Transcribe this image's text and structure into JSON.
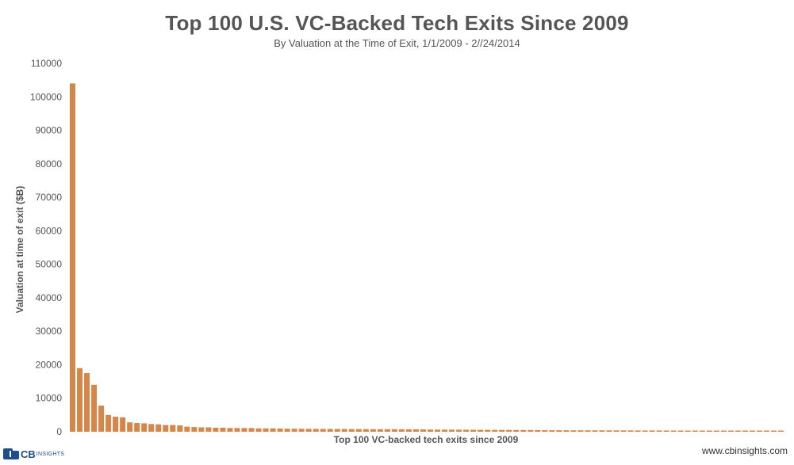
{
  "header": {
    "title": "Top 100 U.S. VC-Backed Tech Exits Since 2009",
    "subtitle": "By Valuation at the Time of Exit, 1/1/2009 - 2//24/2014"
  },
  "footer": {
    "logo_cb": "CB",
    "logo_insights": "INSIGHTS",
    "website": "www.cbinsights.com"
  },
  "colors": {
    "bar": "#d4874a",
    "text": "#555555"
  },
  "chart_data": {
    "type": "bar",
    "title": "Top 100 U.S. VC-Backed Tech Exits Since 2009",
    "subtitle": "By Valuation at the Time of Exit, 1/1/2009 - 2//24/2014",
    "xlabel": "Top 100 VC-backed tech exits since 2009",
    "ylabel": "Valuation at time of exit ($B)",
    "ylim": [
      0,
      110000
    ],
    "yticks": [
      0,
      10000,
      20000,
      30000,
      40000,
      50000,
      60000,
      70000,
      80000,
      90000,
      100000,
      110000
    ],
    "ytick_labels": [
      "0",
      "10000",
      "20000",
      "30000",
      "40000",
      "50000",
      "60000",
      "70000",
      "80000",
      "90000",
      "100000",
      "110000"
    ],
    "grid": false,
    "legend": "none",
    "values": [
      104000,
      19000,
      17500,
      14000,
      7800,
      5000,
      4500,
      4300,
      2800,
      2600,
      2500,
      2300,
      2200,
      2000,
      2000,
      1900,
      1500,
      1400,
      1300,
      1300,
      1200,
      1200,
      1100,
      1100,
      1100,
      1100,
      1000,
      1000,
      1000,
      950,
      900,
      900,
      880,
      860,
      850,
      840,
      830,
      820,
      810,
      800,
      790,
      780,
      770,
      760,
      750,
      740,
      730,
      720,
      710,
      700,
      650,
      640,
      630,
      620,
      610,
      600,
      590,
      580,
      570,
      560,
      550,
      540,
      530,
      520,
      510,
      500,
      460,
      450,
      445,
      440,
      435,
      430,
      425,
      420,
      415,
      410,
      405,
      400,
      395,
      390,
      385,
      380,
      375,
      370,
      365,
      360,
      355,
      350,
      345,
      340,
      335,
      330,
      325,
      320,
      315,
      310,
      305,
      300,
      295,
      290
    ]
  }
}
